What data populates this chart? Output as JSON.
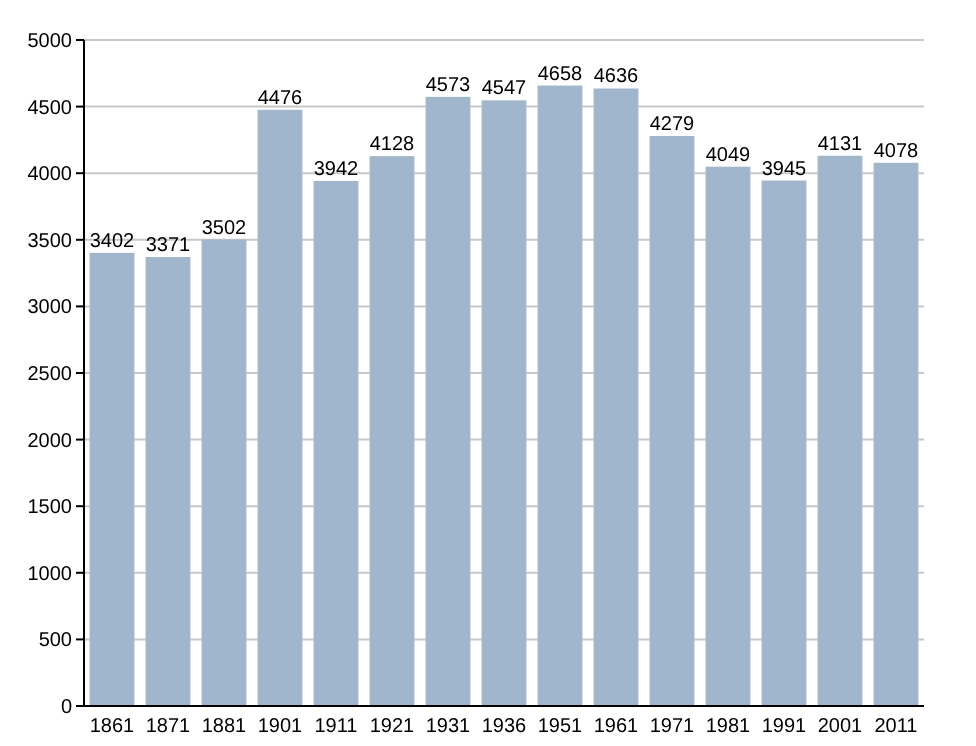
{
  "chart_data": {
    "type": "bar",
    "categories": [
      "1861",
      "1871",
      "1881",
      "1901",
      "1911",
      "1921",
      "1931",
      "1936",
      "1951",
      "1961",
      "1971",
      "1981",
      "1991",
      "2001",
      "2011"
    ],
    "values": [
      3402,
      3371,
      3502,
      4476,
      3942,
      4128,
      4573,
      4547,
      4658,
      4636,
      4279,
      4049,
      3945,
      4131,
      4078
    ],
    "color": "#a0b6cd",
    "ylim": [
      0,
      5000
    ],
    "yticks": [
      0,
      500,
      1000,
      1500,
      2000,
      2500,
      3000,
      3500,
      4000,
      4500,
      5000
    ],
    "grid": "y",
    "data_labels": true
  }
}
